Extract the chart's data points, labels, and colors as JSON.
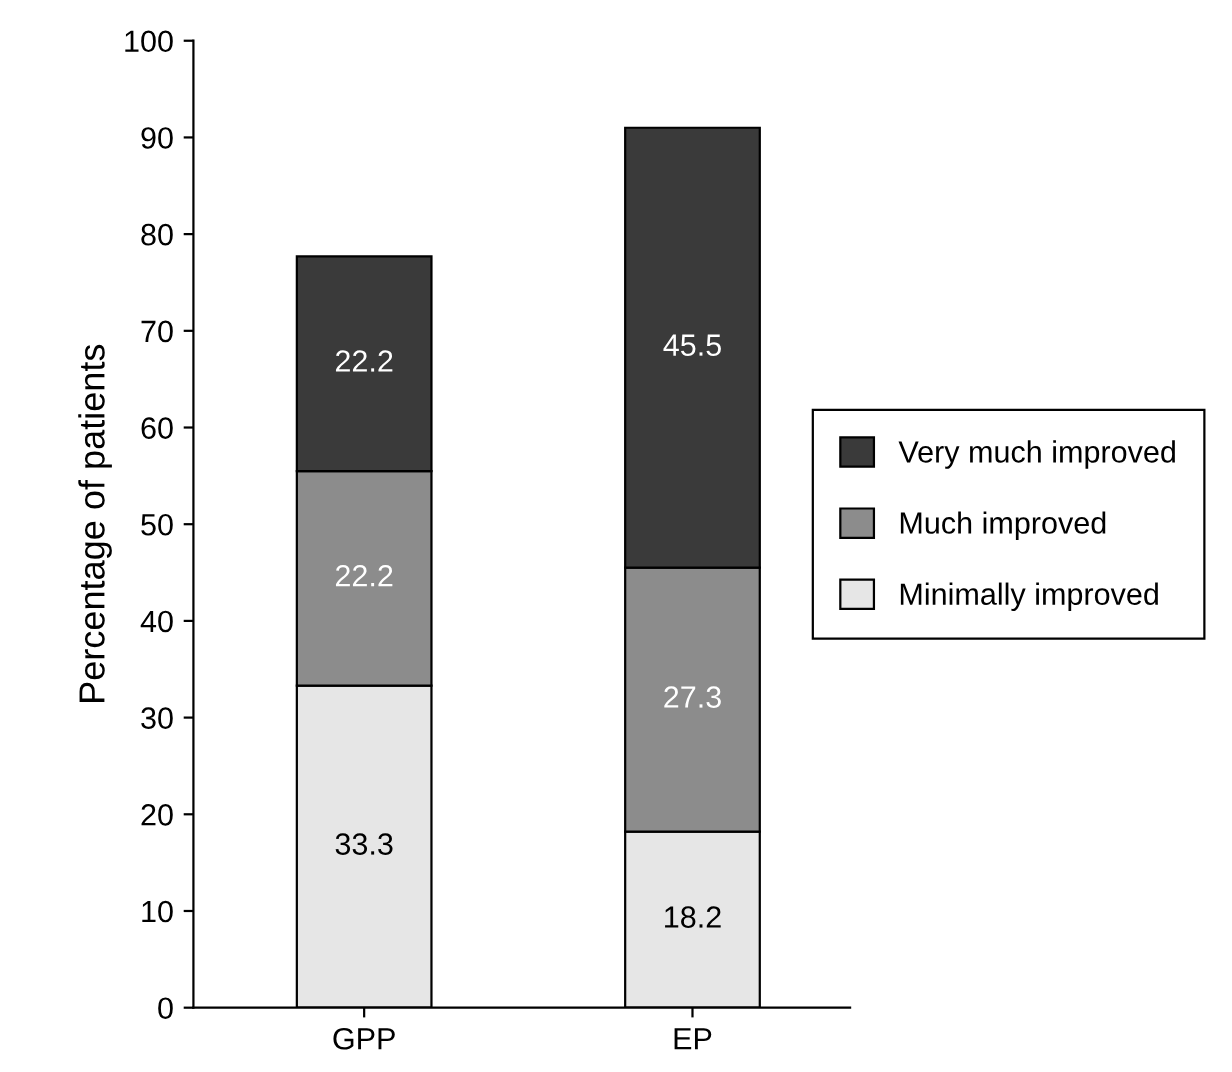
{
  "chart_data": {
    "type": "bar",
    "stacked": true,
    "ylabel": "Percentage of patients",
    "categories": [
      "GPP",
      "EP"
    ],
    "series": [
      {
        "name": "Minimally improved",
        "color": "#e6e6e6",
        "values": [
          33.3,
          18.2
        ]
      },
      {
        "name": "Much improved",
        "color": "#8c8c8c",
        "values": [
          22.2,
          27.3
        ]
      },
      {
        "name": "Very much improved",
        "color": "#3a3a3a",
        "values": [
          22.2,
          45.5
        ]
      }
    ],
    "ylim": [
      0,
      100
    ],
    "yticks": [
      0,
      10,
      20,
      30,
      40,
      50,
      60,
      70,
      80,
      90,
      100
    ],
    "data_labels": true,
    "legend": "right",
    "grid": false
  }
}
